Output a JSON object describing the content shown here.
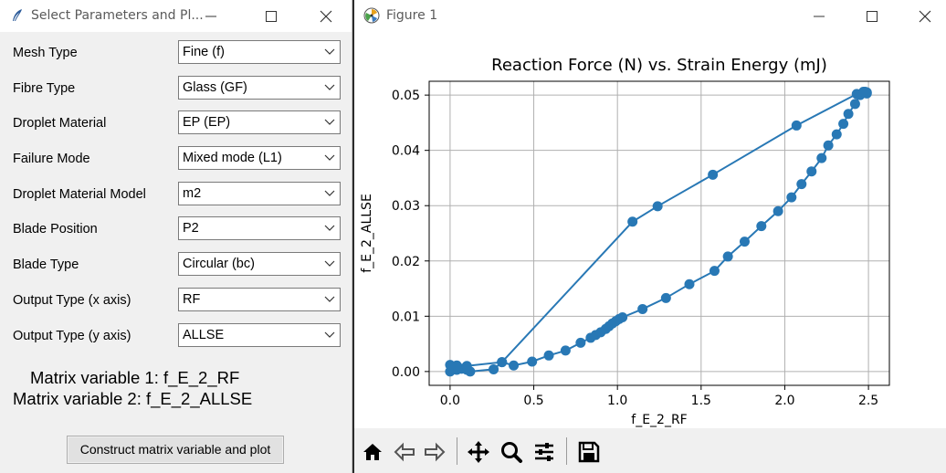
{
  "left_window": {
    "title": "Select Parameters and Pl...",
    "fields": [
      {
        "label": "Mesh Type",
        "value": "Fine (f)"
      },
      {
        "label": "Fibre Type",
        "value": "Glass (GF)"
      },
      {
        "label": "Droplet Material",
        "value": "EP (EP)"
      },
      {
        "label": "Failure Mode",
        "value": "Mixed mode (L1)"
      },
      {
        "label": "Droplet Material Model",
        "value": "m2"
      },
      {
        "label": "Blade Position",
        "value": "P2"
      },
      {
        "label": "Blade Type",
        "value": "Circular (bc)"
      },
      {
        "label": "Output Type (x axis)",
        "value": "RF"
      },
      {
        "label": "Output Type (y axis)",
        "value": "ALLSE"
      }
    ],
    "matrix_var_1": "Matrix variable 1: f_E_2_RF",
    "matrix_var_2": "Matrix variable 2: f_E_2_ALLSE",
    "construct_button": "Construct matrix variable and plot"
  },
  "right_window": {
    "title": "Figure 1",
    "toolbar": [
      "home-icon",
      "back-arrow-icon",
      "forward-arrow-icon",
      "pan-move-icon",
      "zoom-magnifier-icon",
      "configure-subplots-icon",
      "save-floppy-icon"
    ]
  },
  "colors": {
    "series": "#2878b5",
    "grid": "#b0b0b0"
  },
  "chart_data": {
    "type": "line",
    "title": "Reaction Force (N) vs. Strain Energy (mJ)",
    "xlabel": "f_E_2_RF",
    "ylabel": "f_E_2_ALLSE",
    "xlim": [
      -0.125,
      2.625
    ],
    "ylim": [
      -0.0025,
      0.0525
    ],
    "xticks": [
      0.0,
      0.5,
      1.0,
      1.5,
      2.0,
      2.5
    ],
    "xtick_labels": [
      "0.0",
      "0.5",
      "1.0",
      "1.5",
      "2.0",
      "2.5"
    ],
    "yticks": [
      0.0,
      0.01,
      0.02,
      0.03,
      0.04,
      0.05
    ],
    "ytick_labels": [
      "0.00",
      "0.01",
      "0.02",
      "0.03",
      "0.04",
      "0.05"
    ],
    "grid": true,
    "series": [
      {
        "x": [
          0.0,
          0.02,
          0.04,
          0.07,
          0.1,
          0.12,
          0.26,
          0.31,
          0.38,
          0.49,
          0.59,
          0.69,
          0.78,
          0.84,
          0.87,
          0.9,
          0.93,
          0.95,
          0.97,
          0.99,
          1.01,
          1.03,
          1.15,
          1.29,
          1.43,
          1.58,
          1.66,
          1.76,
          1.86,
          1.96,
          2.04,
          2.1,
          2.16,
          2.22,
          2.26,
          2.31,
          2.35,
          2.38,
          2.42,
          2.45,
          2.48,
          2.49,
          2.49,
          2.48,
          2.47,
          2.43,
          2.07,
          1.57,
          1.24,
          1.09,
          0.31,
          0.1,
          0.04,
          0.0
        ],
        "y": [
          0.0,
          0.0004,
          0.0003,
          0.0005,
          0.0003,
          0.0,
          0.0004,
          0.0017,
          0.0011,
          0.0018,
          0.0029,
          0.0038,
          0.0052,
          0.0061,
          0.0066,
          0.0071,
          0.0077,
          0.0082,
          0.0087,
          0.0091,
          0.0095,
          0.0098,
          0.0113,
          0.0133,
          0.0158,
          0.0182,
          0.0208,
          0.0235,
          0.0263,
          0.029,
          0.0315,
          0.0339,
          0.0362,
          0.0386,
          0.0409,
          0.0429,
          0.0448,
          0.0466,
          0.0484,
          0.05,
          0.0506,
          0.0503,
          0.0505,
          0.0504,
          0.0506,
          0.0502,
          0.0445,
          0.0356,
          0.0299,
          0.0271,
          0.0017,
          0.001,
          0.0011,
          0.0012
        ]
      }
    ]
  }
}
